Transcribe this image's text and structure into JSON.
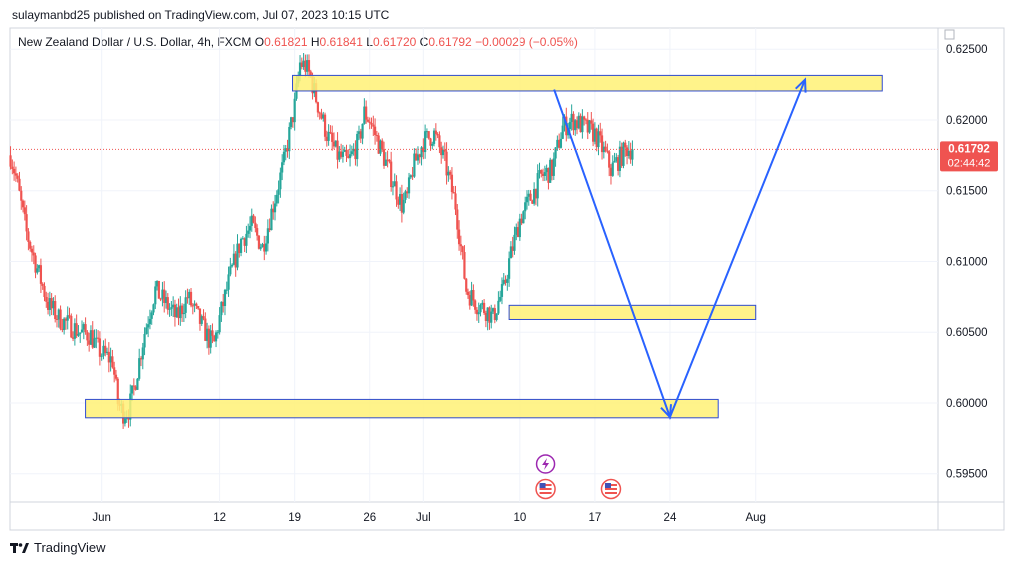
{
  "header": {
    "attribution": "sulaymanbd25 published on TradingView.com, Jul 07, 2023 10:15 UTC"
  },
  "legend": {
    "symbol": "New Zealand Dollar / U.S. Dollar, 4h, FXCM",
    "open_label": "O",
    "open": "0.61821",
    "high_label": "H",
    "high": "0.61841",
    "low_label": "L",
    "low": "0.61720",
    "close_label": "C",
    "close": "0.61792",
    "change": "−0.00029 (−0.05%)"
  },
  "price_tag": {
    "price": "0.61792",
    "countdown": "02:44:42"
  },
  "footer": {
    "brand": "TradingView",
    "logo_icon": "tradingview-logo-icon"
  },
  "colors": {
    "up": "#26a69a",
    "down": "#ef5350",
    "zone_fill": "#fff176",
    "zone_stroke": "#2e4bd1",
    "arrow": "#2962ff"
  },
  "chart_data": {
    "type": "candlestick",
    "y_ticks": [
      "0.62500",
      "0.62000",
      "0.61500",
      "0.61000",
      "0.60500",
      "0.60000",
      "0.59500"
    ],
    "ylim": [
      0.593,
      0.6265
    ],
    "x_ticks": [
      "Jun",
      "12",
      "19",
      "26",
      "Jul",
      "10",
      "17",
      "24",
      "Aug"
    ],
    "x_tick_days": [
      1,
      12,
      19,
      26,
      31,
      40,
      47,
      54,
      62
    ],
    "xlim": [
      -7.55,
      79.0
    ],
    "last_price": 0.61792,
    "price_path": [
      [
        -7.5,
        0.6175
      ],
      [
        -7.0,
        0.616
      ],
      [
        -6.0,
        0.612
      ],
      [
        -5.0,
        0.6095
      ],
      [
        -4.0,
        0.607
      ],
      [
        -3.0,
        0.606
      ],
      [
        -2.0,
        0.6055
      ],
      [
        -1.0,
        0.605
      ],
      [
        0.0,
        0.6048
      ],
      [
        0.5,
        0.604
      ],
      [
        1.0,
        0.6035
      ],
      [
        2.0,
        0.603
      ],
      [
        2.5,
        0.6
      ],
      [
        3.0,
        0.5993
      ],
      [
        3.5,
        0.5995
      ],
      [
        4.0,
        0.601
      ],
      [
        5.0,
        0.605
      ],
      [
        6.0,
        0.608
      ],
      [
        7.0,
        0.607
      ],
      [
        8.0,
        0.606
      ],
      [
        9.0,
        0.6075
      ],
      [
        10.0,
        0.606
      ],
      [
        11.0,
        0.6045
      ],
      [
        11.5,
        0.6042
      ],
      [
        12.0,
        0.606
      ],
      [
        13.0,
        0.609
      ],
      [
        14.0,
        0.6115
      ],
      [
        15.0,
        0.6125
      ],
      [
        16.0,
        0.611
      ],
      [
        17.0,
        0.614
      ],
      [
        18.0,
        0.617
      ],
      [
        19.0,
        0.621
      ],
      [
        19.5,
        0.624
      ],
      [
        20.0,
        0.6238
      ],
      [
        20.5,
        0.623
      ],
      [
        21.0,
        0.6215
      ],
      [
        22.0,
        0.619
      ],
      [
        23.0,
        0.6175
      ],
      [
        24.0,
        0.617
      ],
      [
        25.0,
        0.6185
      ],
      [
        25.5,
        0.6205
      ],
      [
        26.0,
        0.62
      ],
      [
        27.0,
        0.618
      ],
      [
        28.0,
        0.616
      ],
      [
        29.0,
        0.614
      ],
      [
        29.5,
        0.6145
      ],
      [
        30.0,
        0.6165
      ],
      [
        31.0,
        0.6185
      ],
      [
        32.0,
        0.619
      ],
      [
        33.0,
        0.617
      ],
      [
        34.0,
        0.614
      ],
      [
        34.5,
        0.611
      ],
      [
        35.0,
        0.608
      ],
      [
        36.0,
        0.607
      ],
      [
        37.0,
        0.6065
      ],
      [
        37.5,
        0.606
      ],
      [
        38.0,
        0.6072
      ],
      [
        38.5,
        0.608
      ],
      [
        39.0,
        0.61
      ],
      [
        40.0,
        0.613
      ],
      [
        41.0,
        0.6145
      ],
      [
        42.0,
        0.616
      ],
      [
        43.0,
        0.6165
      ],
      [
        44.0,
        0.6195
      ],
      [
        45.0,
        0.62
      ],
      [
        46.0,
        0.6195
      ],
      [
        47.0,
        0.619
      ],
      [
        48.0,
        0.6175
      ],
      [
        48.5,
        0.6165
      ],
      [
        49.0,
        0.617
      ],
      [
        50.0,
        0.618
      ],
      [
        50.5,
        0.6179
      ]
    ],
    "zones": [
      {
        "x": [
          18.8,
          73.8
        ],
        "y": [
          0.62205,
          0.62315
        ]
      },
      {
        "x": [
          39.0,
          62.0
        ],
        "y": [
          0.6059,
          0.6069
        ]
      },
      {
        "x": [
          -0.5,
          58.5
        ],
        "y": [
          0.59895,
          0.60025
        ]
      }
    ],
    "projection": [
      [
        43.2,
        0.62215
      ],
      [
        54.0,
        0.599
      ],
      [
        66.6,
        0.62285
      ]
    ],
    "event_icons": [
      {
        "day": 42.4,
        "icon": "lightning-event-icon"
      },
      {
        "day": 42.4,
        "icon": "us-flag-icon"
      },
      {
        "day": 48.5,
        "icon": "us-flag-icon"
      }
    ]
  }
}
